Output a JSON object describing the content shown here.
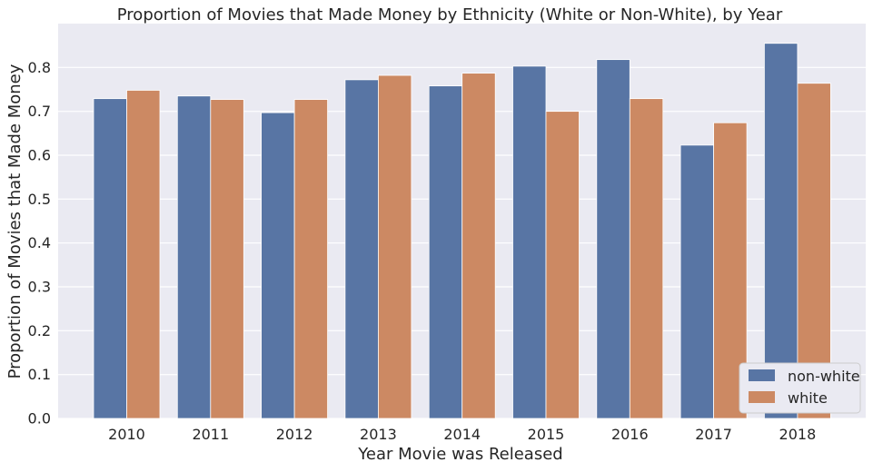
{
  "chart_data": {
    "type": "bar",
    "title": "Proportion of Movies that Made Money by Ethnicity (White or Non-White), by Year",
    "xlabel": "Year Movie was Released",
    "ylabel": "Proportion of Movies that Made Money",
    "categories": [
      "2010",
      "2011",
      "2012",
      "2013",
      "2014",
      "2015",
      "2016",
      "2017",
      "2018"
    ],
    "ylim": [
      0,
      0.9
    ],
    "yticks": [
      "0.0",
      "0.1",
      "0.2",
      "0.3",
      "0.4",
      "0.5",
      "0.6",
      "0.7",
      "0.8"
    ],
    "grid": true,
    "legend_position": "lower-right",
    "series": [
      {
        "name": "non-white",
        "color": "#5875a4",
        "values": [
          0.729,
          0.735,
          0.697,
          0.772,
          0.758,
          0.803,
          0.818,
          0.623,
          0.855
        ]
      },
      {
        "name": "white",
        "color": "#cc8963",
        "values": [
          0.748,
          0.727,
          0.727,
          0.782,
          0.787,
          0.7,
          0.729,
          0.674,
          0.764
        ]
      }
    ],
    "background_color": "#eaeaf2",
    "grid_color": "#ffffff"
  }
}
